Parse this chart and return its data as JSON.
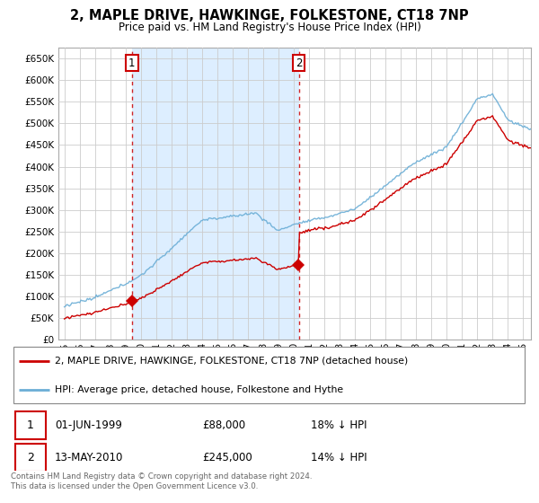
{
  "title": "2, MAPLE DRIVE, HAWKINGE, FOLKESTONE, CT18 7NP",
  "subtitle": "Price paid vs. HM Land Registry's House Price Index (HPI)",
  "legend_line1": "2, MAPLE DRIVE, HAWKINGE, FOLKESTONE, CT18 7NP (detached house)",
  "legend_line2": "HPI: Average price, detached house, Folkestone and Hythe",
  "sale1_date": "01-JUN-1999",
  "sale1_price": "£88,000",
  "sale1_hpi": "18% ↓ HPI",
  "sale2_date": "13-MAY-2010",
  "sale2_price": "£245,000",
  "sale2_hpi": "14% ↓ HPI",
  "footer": "Contains HM Land Registry data © Crown copyright and database right 2024.\nThis data is licensed under the Open Government Licence v3.0.",
  "hpi_color": "#6baed6",
  "property_color": "#cc0000",
  "dashed_line_color": "#cc0000",
  "shade_color": "#ddeeff",
  "ylim_min": 0,
  "ylim_max": 675000,
  "yticks": [
    0,
    50000,
    100000,
    150000,
    200000,
    250000,
    300000,
    350000,
    400000,
    450000,
    500000,
    550000,
    600000,
    650000
  ],
  "background_color": "#ffffff",
  "grid_color": "#cccccc"
}
